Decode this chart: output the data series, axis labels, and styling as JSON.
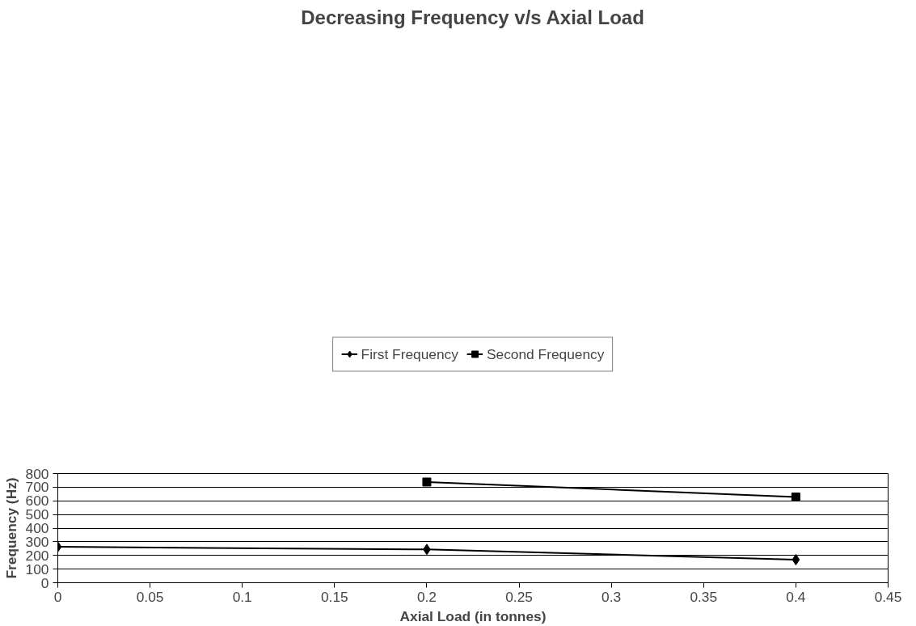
{
  "chart_data": {
    "type": "line",
    "title": "Decreasing Frequency v/s Axial Load",
    "xlabel": "Axial Load (in tonnes)",
    "ylabel": "Frequency (Hz)",
    "series": [
      {
        "name": "First Frequency",
        "color": "#000000",
        "marker": "diamond",
        "x": [
          0,
          0.2,
          0.4
        ],
        "values": [
          263,
          244,
          169
        ]
      },
      {
        "name": "Second Frequency",
        "color": "#000000",
        "marker": "square",
        "x": [
          0.2,
          0.4
        ],
        "values": [
          738,
          628
        ]
      }
    ],
    "xlim": [
      0,
      0.45
    ],
    "xticks": [
      0,
      0.05,
      0.1,
      0.15,
      0.2,
      0.25,
      0.3,
      0.35,
      0.4,
      0.45
    ],
    "ylim": [
      0,
      800
    ],
    "yticks": [
      0,
      100,
      200,
      300,
      400,
      500,
      600,
      700,
      800
    ],
    "grid": "y",
    "legend": "top",
    "line_style": "solid"
  }
}
